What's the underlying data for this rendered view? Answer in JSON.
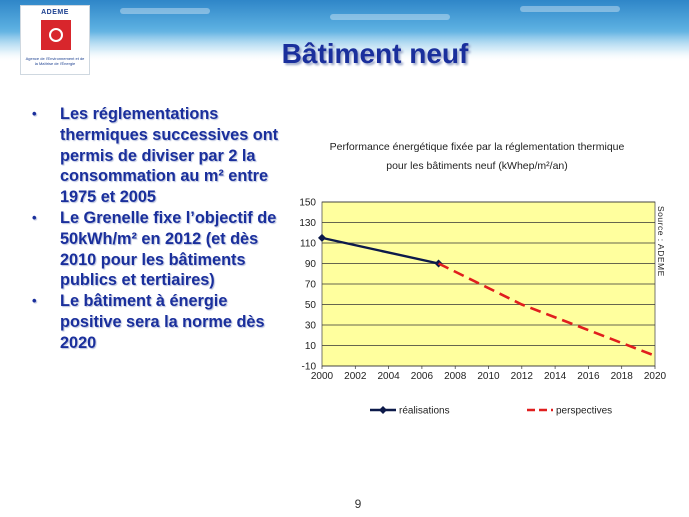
{
  "header": {
    "logo_name": "ADEME",
    "logo_subtitle": "Agence de l'Environnement et de la Maîtrise de l'Énergie",
    "title": "Bâtiment neuf"
  },
  "bullets": [
    "Les réglementations thermiques successives ont permis de diviser par 2 la consommation au m² entre 1975 et 2005",
    "Le Grenelle fixe l’objectif de 50kWh/m² en 2012 (et dès 2010 pour les bâtiments publics et tertiaires)",
    "Le bâtiment à énergie positive sera la norme dès 2020"
  ],
  "chart_data": {
    "type": "line",
    "title": "Performance énergétique fixée par la réglementation thermique pour les bâtiments neuf (kWhep/m²/an)",
    "source_label": "Source : ADEME",
    "xlim": [
      2000,
      2020
    ],
    "ylim": [
      -10,
      150
    ],
    "x_ticks": [
      "2000",
      "2002",
      "2004",
      "2006",
      "2008",
      "2010",
      "2012",
      "2014",
      "2016",
      "2018",
      "2020"
    ],
    "y_ticks": [
      "150",
      "130",
      "110",
      "90",
      "70",
      "50",
      "30",
      "10",
      "-10"
    ],
    "grid": true,
    "plot_background": "#ffff9e",
    "legend_position": "bottom",
    "series": [
      {
        "name": "réalisations",
        "style": "solid",
        "color": "#0d1a4a",
        "marker": "diamond",
        "x": [
          2000,
          2007
        ],
        "y": [
          115,
          90
        ]
      },
      {
        "name": "perspectives",
        "style": "dashed",
        "color": "#e01e1e",
        "marker": "none",
        "x": [
          2007,
          2012,
          2020
        ],
        "y": [
          90,
          50,
          0
        ]
      }
    ]
  },
  "footer": {
    "page_number": "9"
  }
}
